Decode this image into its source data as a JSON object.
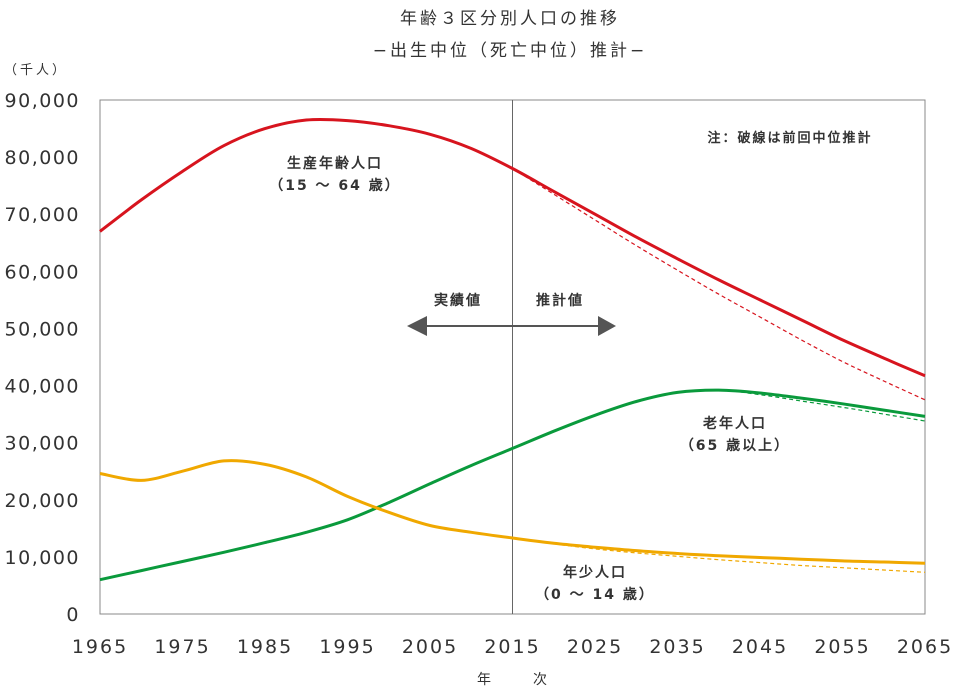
{
  "chart_data": {
    "type": "line",
    "title": "年齢３区分別人口の推移",
    "subtitle": "−出生中位（死亡中位）推計−",
    "y_unit": "（千人）",
    "xlabel": "年　次",
    "ylim": [
      0,
      90000
    ],
    "xlim": [
      1965,
      2065
    ],
    "y_ticks": [
      "0",
      "10,000",
      "20,000",
      "30,000",
      "40,000",
      "50,000",
      "60,000",
      "70,000",
      "80,000",
      "90,000"
    ],
    "x_ticks": [
      "1965",
      "1975",
      "1985",
      "1995",
      "2005",
      "2015",
      "2025",
      "2035",
      "2045",
      "2055",
      "2065"
    ],
    "divider_year": 2015,
    "grid": false,
    "note": "注：破線は前回中位推計",
    "actual_label": "実績値",
    "projection_label": "推計値",
    "series": [
      {
        "name": "生産年齢人口",
        "sub": "（15 ～ 64 歳）",
        "color": "#d7141e",
        "x": [
          1965,
          1970,
          1975,
          1980,
          1985,
          1990,
          1995,
          2000,
          2005,
          2010,
          2015,
          2020,
          2025,
          2030,
          2035,
          2040,
          2045,
          2050,
          2055,
          2060,
          2065
        ],
        "values": [
          67000,
          72500,
          77500,
          82000,
          85000,
          86500,
          86400,
          85500,
          84000,
          81500,
          78000,
          74000,
          70000,
          66000,
          62200,
          58500,
          55000,
          51500,
          48000,
          44800,
          41700
        ],
        "previous_projection": {
          "x": [
            2015,
            2020,
            2025,
            2030,
            2035,
            2040,
            2045,
            2050,
            2055,
            2060,
            2065
          ],
          "values": [
            78000,
            73500,
            69000,
            64500,
            60200,
            56000,
            52000,
            48000,
            44200,
            40800,
            37500
          ]
        }
      },
      {
        "name": "老年人口",
        "sub": "（65 歳以上）",
        "color": "#0a9a3c",
        "x": [
          1965,
          1970,
          1975,
          1980,
          1985,
          1990,
          1995,
          2000,
          2005,
          2010,
          2015,
          2020,
          2025,
          2030,
          2035,
          2040,
          2045,
          2050,
          2055,
          2060,
          2065
        ],
        "values": [
          6000,
          7600,
          9200,
          10800,
          12500,
          14300,
          16500,
          19500,
          22800,
          26000,
          29000,
          32000,
          34800,
          37200,
          38800,
          39200,
          38700,
          37800,
          36800,
          35700,
          34600
        ],
        "previous_projection": {
          "x": [
            2015,
            2020,
            2025,
            2030,
            2035,
            2040,
            2045,
            2050,
            2055,
            2060,
            2065
          ],
          "values": [
            29000,
            32000,
            34800,
            37200,
            38800,
            39200,
            38400,
            37300,
            36200,
            35000,
            33800
          ]
        }
      },
      {
        "name": "年少人口",
        "sub": "（0 ～ 14 歳）",
        "color": "#f0a800",
        "x": [
          1965,
          1970,
          1975,
          1980,
          1985,
          1990,
          1995,
          2000,
          2005,
          2010,
          2015,
          2020,
          2025,
          2030,
          2035,
          2040,
          2045,
          2050,
          2055,
          2060,
          2065
        ],
        "values": [
          24600,
          23400,
          25000,
          26800,
          26200,
          24000,
          20600,
          17800,
          15500,
          14300,
          13300,
          12400,
          11700,
          11100,
          10600,
          10200,
          9900,
          9600,
          9300,
          9100,
          8900
        ],
        "previous_projection": {
          "x": [
            2015,
            2020,
            2025,
            2030,
            2035,
            2040,
            2045,
            2050,
            2055,
            2060,
            2065
          ],
          "values": [
            13300,
            12300,
            11400,
            10700,
            10100,
            9500,
            9000,
            8500,
            8100,
            7700,
            7300
          ]
        }
      }
    ]
  }
}
